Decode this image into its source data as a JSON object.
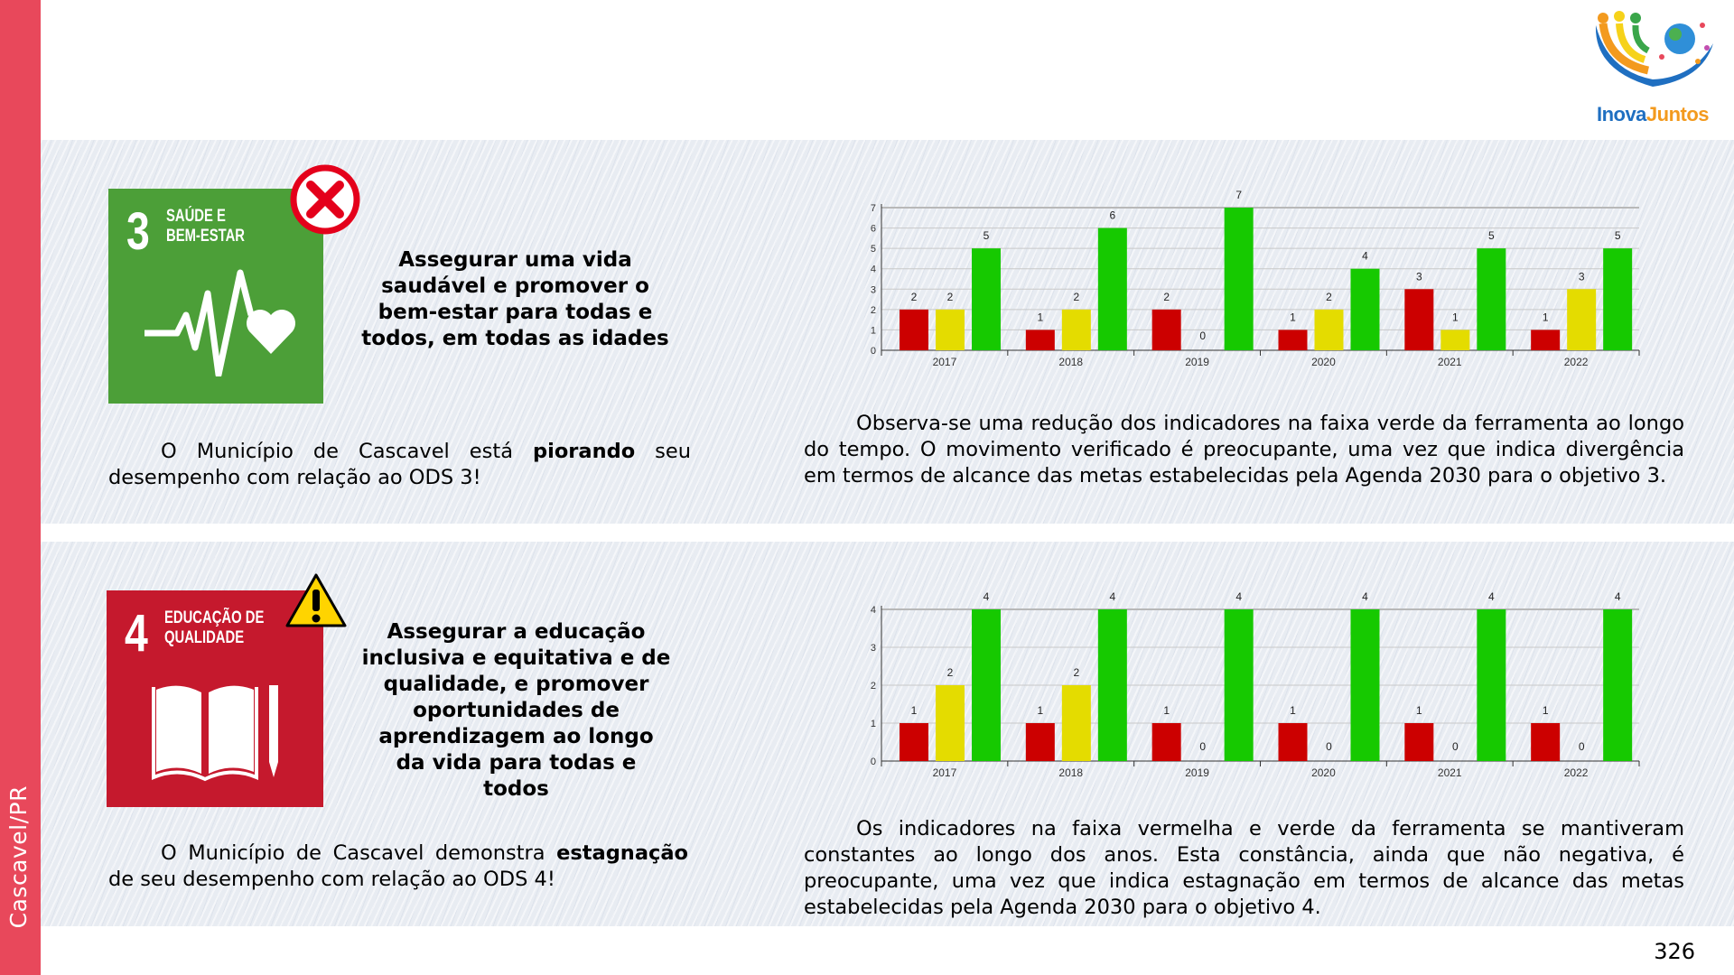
{
  "sidebar": {
    "label": "Cascavel/PR"
  },
  "logo": {
    "text_part1": "Inova",
    "text_part2": "Juntos"
  },
  "page_number": "326",
  "colors": {
    "red": "#cc0000",
    "yellow": "#e4dc00",
    "green": "#16c900",
    "sdg3": "#4c9f38",
    "sdg4": "#c5192d",
    "sidebar": "#e8485b"
  },
  "sections": [
    {
      "sdg_number": "3",
      "sdg_title": "SAÚDE E\nBEM-ESTAR",
      "status_icon": "x-circle-icon",
      "heading": "Assegurar uma vida saudável e promover o bem-estar para todas e todos, em todas as idades",
      "left_text_pre": "O Município de Cascavel está ",
      "left_text_bold": "piorando",
      "left_text_post": " seu desempenho com relação ao ODS 3!",
      "right_text": "Observa-se uma redução dos indicadores na faixa verde da ferramenta ao longo do tempo. O movimento verificado é preocupante, uma vez que indica divergência em termos de alcance das metas estabelecidas pela Agenda 2030 para o objetivo 3."
    },
    {
      "sdg_number": "4",
      "sdg_title": "EDUCAÇÃO DE\nQUALIDADE",
      "status_icon": "warning-icon",
      "heading": "Assegurar a educação inclusiva e equitativa e de qualidade, e promover oportunidades de aprendizagem ao longo da vida para todas e todos",
      "left_text_pre": "O Município de Cascavel demonstra ",
      "left_text_bold": "estagnação",
      "left_text_post": " de seu desempenho com relação ao ODS 4!",
      "right_text": "Os indicadores na faixa vermelha e verde da ferramenta se mantiveram constantes ao longo dos anos. Esta constância, ainda que não negativa, é preocupante, uma vez que indica estagnação em termos de alcance das metas estabelecidas pela Agenda 2030 para o objetivo 4."
    }
  ],
  "chart_data": [
    {
      "type": "bar",
      "title": "",
      "categories": [
        "2017",
        "2018",
        "2019",
        "2020",
        "2021",
        "2022"
      ],
      "ylim": [
        0,
        7
      ],
      "yticks": [
        "0",
        "1",
        "2",
        "3",
        "4",
        "5",
        "6",
        "7"
      ],
      "grid": true,
      "series": [
        {
          "name": "red",
          "color": "#cc0000",
          "values": [
            2,
            1,
            2,
            1,
            3,
            1
          ]
        },
        {
          "name": "yellow",
          "color": "#e4dc00",
          "values": [
            2,
            2,
            0,
            2,
            1,
            3
          ]
        },
        {
          "name": "green",
          "color": "#16c900",
          "values": [
            5,
            6,
            7,
            4,
            5,
            5
          ]
        }
      ]
    },
    {
      "type": "bar",
      "title": "",
      "categories": [
        "2017",
        "2018",
        "2019",
        "2020",
        "2021",
        "2022"
      ],
      "ylim": [
        0,
        4
      ],
      "yticks": [
        "0",
        "1",
        "2",
        "3",
        "4"
      ],
      "grid": true,
      "series": [
        {
          "name": "red",
          "color": "#cc0000",
          "values": [
            1,
            1,
            1,
            1,
            1,
            1
          ]
        },
        {
          "name": "yellow",
          "color": "#e4dc00",
          "values": [
            2,
            2,
            0,
            0,
            0,
            0
          ]
        },
        {
          "name": "green",
          "color": "#16c900",
          "values": [
            4,
            4,
            4,
            4,
            4,
            4
          ]
        }
      ]
    }
  ]
}
